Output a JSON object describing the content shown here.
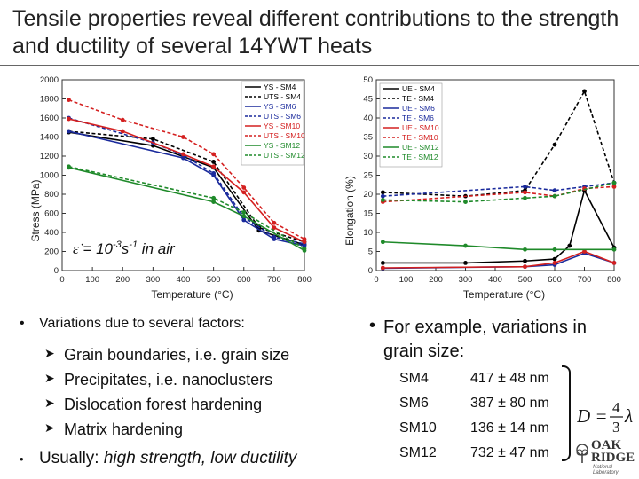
{
  "title": "Tensile properties reveal different contributions to the strength and ductility of several 14YWT heats",
  "chart_data": [
    {
      "type": "line",
      "title": "",
      "xlabel": "Temperature (°C)",
      "ylabel": "Stress (MPa)",
      "xlim": [
        0,
        800
      ],
      "ylim": [
        0,
        2000
      ],
      "xticks": [
        0,
        100,
        200,
        300,
        400,
        500,
        600,
        700,
        800
      ],
      "yticks": [
        0,
        200,
        400,
        600,
        800,
        1000,
        1200,
        1400,
        1600,
        1800,
        2000
      ],
      "xtick_labels": [
        "0",
        "100",
        "200",
        "300",
        "400",
        "500",
        "600",
        "700",
        "800"
      ],
      "ytick_labels": [
        "0",
        "200",
        "400",
        "600",
        "800",
        "1000",
        "1200",
        "1400",
        "1600",
        "1800",
        "2000"
      ],
      "annotation": {
        "symbol": "ε̇",
        "text": "= 10",
        "exp1": "-3",
        "mid": "s",
        "exp2": "-1",
        "tail": " in air"
      },
      "legend_position": "top-right",
      "series": [
        {
          "name": "YS - SM4",
          "color": "#000000",
          "dash": "solid",
          "x": [
            22,
            300,
            500,
            650,
            800
          ],
          "values": [
            1450,
            1310,
            1080,
            420,
            270
          ]
        },
        {
          "name": "UTS - SM4",
          "color": "#000000",
          "dash": "dashed",
          "x": [
            22,
            300,
            500,
            650,
            800
          ],
          "values": [
            1460,
            1380,
            1140,
            450,
            300
          ]
        },
        {
          "name": "YS - SM6",
          "color": "#1a2a9c",
          "dash": "solid",
          "x": [
            22,
            400,
            500,
            600,
            700,
            800
          ],
          "values": [
            1460,
            1180,
            1000,
            530,
            330,
            260
          ]
        },
        {
          "name": "UTS - SM6",
          "color": "#1a2a9c",
          "dash": "dashed",
          "x": [
            22,
            300,
            400,
            500,
            600,
            700,
            800
          ],
          "values": [
            1600,
            1340,
            1210,
            1020,
            560,
            350,
            280
          ]
        },
        {
          "name": "YS - SM10",
          "color": "#d42020",
          "dash": "solid",
          "x": [
            22,
            200,
            400,
            500,
            600,
            700,
            800
          ],
          "values": [
            1590,
            1460,
            1220,
            1090,
            820,
            450,
            300
          ]
        },
        {
          "name": "UTS - SM10",
          "color": "#d42020",
          "dash": "dashed",
          "x": [
            22,
            200,
            400,
            500,
            600,
            700,
            800
          ],
          "values": [
            1790,
            1580,
            1400,
            1220,
            870,
            500,
            330
          ]
        },
        {
          "name": "YS - SM12",
          "color": "#1f8a2a",
          "dash": "solid",
          "x": [
            22,
            500,
            600,
            800
          ],
          "values": [
            1080,
            720,
            570,
            210
          ]
        },
        {
          "name": "UTS - SM12",
          "color": "#1f8a2a",
          "dash": "dashed",
          "x": [
            22,
            500,
            600,
            800
          ],
          "values": [
            1090,
            760,
            610,
            230
          ]
        }
      ]
    },
    {
      "type": "line",
      "title": "",
      "xlabel": "Temperature (°C)",
      "ylabel": "Elongation (%)",
      "xlim": [
        0,
        800
      ],
      "ylim": [
        0,
        50
      ],
      "xticks": [
        0,
        100,
        200,
        300,
        400,
        500,
        600,
        700,
        800
      ],
      "yticks": [
        0,
        5,
        10,
        15,
        20,
        25,
        30,
        35,
        40,
        45,
        50
      ],
      "xtick_labels": [
        "0",
        "100",
        "200",
        "300",
        "400",
        "500",
        "600",
        "700",
        "800"
      ],
      "ytick_labels": [
        "0",
        "5",
        "10",
        "15",
        "20",
        "25",
        "30",
        "35",
        "40",
        "45",
        "50"
      ],
      "legend_position": "top-left",
      "series": [
        {
          "name": "UE - SM4",
          "color": "#000000",
          "dash": "solid",
          "x": [
            22,
            300,
            500,
            600,
            650,
            700,
            800
          ],
          "values": [
            2,
            2,
            2.5,
            3,
            6.5,
            21,
            6
          ]
        },
        {
          "name": "TE - SM4",
          "color": "#000000",
          "dash": "dashed",
          "x": [
            22,
            300,
            500,
            600,
            700,
            800
          ],
          "values": [
            20.5,
            19.5,
            21,
            33,
            47,
            23
          ]
        },
        {
          "name": "UE - SM6",
          "color": "#1a2a9c",
          "dash": "solid",
          "x": [
            22,
            500,
            600,
            700,
            800
          ],
          "values": [
            0.6,
            1,
            1.5,
            4.5,
            2
          ]
        },
        {
          "name": "TE - SM6",
          "color": "#1a2a9c",
          "dash": "dashed",
          "x": [
            22,
            500,
            600,
            700,
            800
          ],
          "values": [
            19.5,
            22,
            21,
            22,
            23
          ]
        },
        {
          "name": "UE - SM10",
          "color": "#d42020",
          "dash": "solid",
          "x": [
            22,
            500,
            600,
            700,
            800
          ],
          "values": [
            0.7,
            1,
            2,
            5,
            2
          ]
        },
        {
          "name": "TE - SM10",
          "color": "#d42020",
          "dash": "dashed",
          "x": [
            22,
            500,
            600,
            700,
            800
          ],
          "values": [
            18,
            20.5,
            19.5,
            21.5,
            22
          ]
        },
        {
          "name": "UE - SM12",
          "color": "#1f8a2a",
          "dash": "solid",
          "x": [
            22,
            300,
            500,
            600,
            800
          ],
          "values": [
            7.5,
            6.5,
            5.5,
            5.5,
            5.5
          ]
        },
        {
          "name": "TE - SM12",
          "color": "#1f8a2a",
          "dash": "dashed",
          "x": [
            22,
            300,
            500,
            600,
            800
          ],
          "values": [
            18.5,
            18,
            19,
            19.5,
            23
          ]
        }
      ]
    }
  ],
  "bullets": {
    "main": "Variations due to several factors:",
    "sub": [
      "Grain boundaries, i.e. grain size",
      "Precipitates, i.e. nanoclusters",
      "Dislocation forest hardening",
      "Matrix hardening"
    ],
    "usually_prefix": "Usually: ",
    "usually_italic": "high strength, low ductility",
    "right_text": "For example, variations in grain size:"
  },
  "grain_sizes": [
    {
      "heat": "SM4",
      "value": "417 ± 48 nm"
    },
    {
      "heat": "SM6",
      "value": "387 ± 80 nm"
    },
    {
      "heat": "SM10",
      "value": "136 ± 14 nm"
    },
    {
      "heat": "SM12",
      "value": "732 ± 47 nm"
    }
  ],
  "formula": {
    "lhs": "D =",
    "num": "4",
    "den": "3",
    "var": "λ"
  },
  "logo": {
    "line1": "OAK",
    "line2": "RIDGE",
    "line3": "National Laboratory"
  }
}
